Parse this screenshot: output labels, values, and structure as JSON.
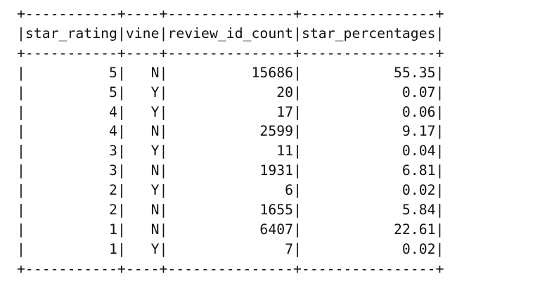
{
  "table": {
    "columns": [
      "star_rating",
      "vine",
      "review_id_count",
      "star_percentages"
    ],
    "rows": [
      [
        "5",
        "N",
        "15686",
        "55.35"
      ],
      [
        "5",
        "Y",
        "20",
        "0.07"
      ],
      [
        "4",
        "Y",
        "17",
        "0.06"
      ],
      [
        "4",
        "N",
        "2599",
        "9.17"
      ],
      [
        "3",
        "Y",
        "11",
        "0.04"
      ],
      [
        "3",
        "N",
        "1931",
        "6.81"
      ],
      [
        "2",
        "Y",
        "6",
        "0.02"
      ],
      [
        "2",
        "N",
        "1655",
        "5.84"
      ],
      [
        "1",
        "N",
        "6407",
        "22.61"
      ],
      [
        "1",
        "Y",
        "7",
        "0.02"
      ]
    ]
  }
}
